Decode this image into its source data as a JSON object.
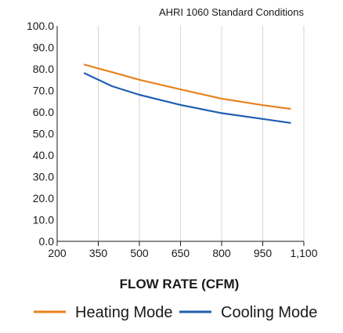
{
  "chart_data": {
    "type": "line",
    "subtitle": "AHRI 1060 Standard Conditions",
    "title": "",
    "xlabel": "FLOW RATE (CFM)",
    "ylabel": "",
    "x_tick_labels": [
      "200",
      "350",
      "500",
      "650",
      "800",
      "950",
      "1,100"
    ],
    "y_tick_labels": [
      "0.0",
      "10.0",
      "20.0",
      "30.0",
      "40.0",
      "50.0",
      "60.0",
      "70.0",
      "80.0",
      "90.0",
      "100.0"
    ],
    "xlim": [
      200,
      1100
    ],
    "ylim": [
      0,
      100
    ],
    "grid": {
      "vertical": true,
      "horizontal": false
    },
    "legend_position": "bottom",
    "series": [
      {
        "name": "Heating Mode",
        "color": "#e8821e",
        "x": [
          300,
          400,
          500,
          650,
          800,
          950,
          1050
        ],
        "y": [
          82,
          78.5,
          75,
          70.5,
          66.2,
          63.2,
          61.5
        ]
      },
      {
        "name": "Cooling Mode",
        "color": "#1f5fb0",
        "x": [
          300,
          400,
          500,
          650,
          800,
          950,
          1050
        ],
        "y": [
          78,
          72,
          68,
          63.3,
          59.5,
          56.8,
          55
        ]
      }
    ]
  }
}
